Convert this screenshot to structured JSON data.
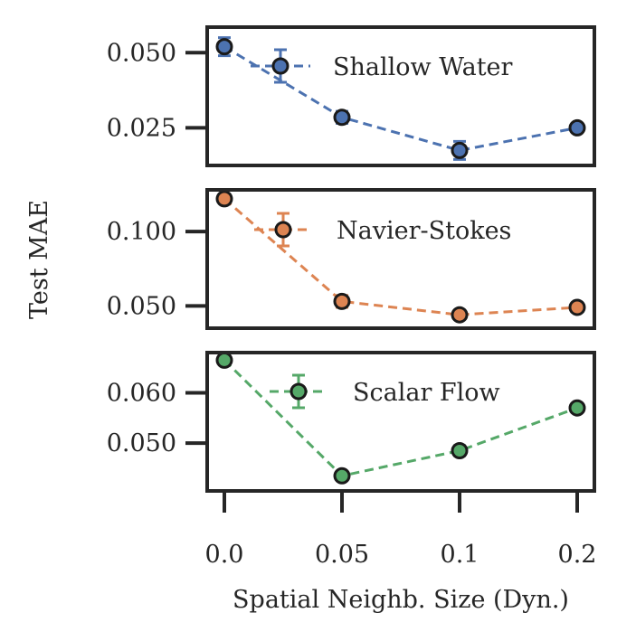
{
  "chart_data": {
    "type": "line",
    "xlabel": "Spatial Neighb. Size (Dyn.)",
    "ylabel": "Test MAE",
    "x_categories": [
      "0.0",
      "0.05",
      "0.1",
      "0.2"
    ],
    "panels": [
      {
        "name": "Shallow Water",
        "color": "#4c72b0",
        "values": [
          0.052,
          0.0285,
          0.0175,
          0.025
        ],
        "errors": [
          0.003,
          0.002,
          0.003,
          0.001
        ],
        "ylim": [
          0.0125,
          0.0585
        ],
        "yticks": [
          0.025,
          0.05
        ],
        "ytick_labels": [
          "0.025",
          "0.050"
        ],
        "legend_location": "upper-right"
      },
      {
        "name": "Navier-Stokes",
        "color": "#dd8452",
        "values": [
          0.122,
          0.053,
          0.044,
          0.049
        ],
        "errors": [
          0.002,
          0.004,
          0.001,
          0.001
        ],
        "ylim": [
          0.035,
          0.128
        ],
        "yticks": [
          0.05,
          0.1
        ],
        "ytick_labels": [
          "0.050",
          "0.100"
        ],
        "legend_location": "upper-right"
      },
      {
        "name": "Scalar Flow",
        "color": "#55a868",
        "values": [
          0.0665,
          0.0435,
          0.0485,
          0.057
        ],
        "errors": [
          0.0005,
          0.0005,
          0.001,
          0.0005
        ],
        "ylim": [
          0.0405,
          0.068
        ],
        "yticks": [
          0.05,
          0.06
        ],
        "ytick_labels": [
          "0.050",
          "0.060"
        ],
        "legend_location": "upper-right"
      }
    ]
  }
}
